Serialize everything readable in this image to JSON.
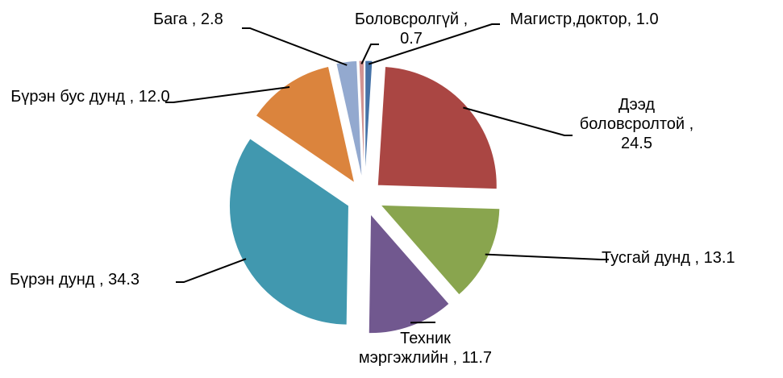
{
  "chart_data": {
    "type": "pie",
    "labels": [
      "Магистр,доктор, 1.0",
      "Дээд боловсролтой , 24.5",
      "Тусгай дунд , 13.1",
      "Техник мэргэжлийн , 11.7",
      "Бүрэн дунд , 34.3",
      "Бүрэн бус дунд , 12.0",
      "Бага , 2.8",
      "Боловсролгүй , 0.7"
    ],
    "values": [
      1.0,
      24.5,
      13.1,
      11.7,
      34.3,
      12.0,
      2.8,
      0.7
    ],
    "colors": [
      "#4572a7",
      "#aa4643",
      "#89a54e",
      "#71588f",
      "#4198af",
      "#db843d",
      "#93a9cf",
      "#d19392"
    ],
    "exploded": true
  }
}
